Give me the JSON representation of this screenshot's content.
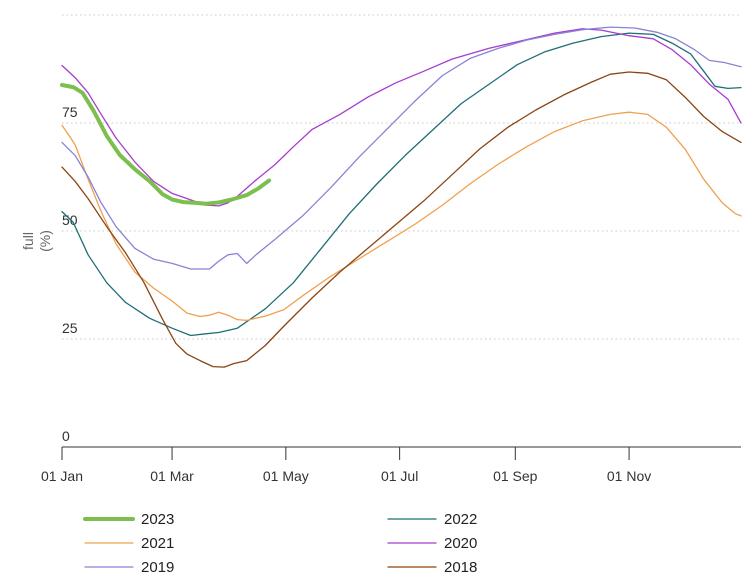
{
  "chart_data": {
    "type": "line",
    "title": "",
    "xlabel": "",
    "ylabel": [
      "full",
      "(%)"
    ],
    "ylim": [
      0,
      100
    ],
    "xlim_day_of_year": [
      1,
      365
    ],
    "yticks": [
      {
        "value": 0,
        "label": "0"
      },
      {
        "value": 25,
        "label": "25"
      },
      {
        "value": 50,
        "label": "50"
      },
      {
        "value": 75,
        "label": "75"
      },
      {
        "value": 100,
        "label": ""
      }
    ],
    "xticks": [
      {
        "day": 1,
        "label": "01 Jan"
      },
      {
        "day": 60,
        "label": "01 Mar"
      },
      {
        "day": 121,
        "label": "01 May"
      },
      {
        "day": 182,
        "label": "01 Jul"
      },
      {
        "day": 244,
        "label": "01 Sep"
      },
      {
        "day": 305,
        "label": "01 Nov"
      }
    ],
    "grid": "horizontal dotted",
    "legend": "bottom, two columns",
    "series": [
      {
        "name": "2023",
        "color": "#7cbf4e",
        "width": 4,
        "points": [
          [
            1,
            83.8
          ],
          [
            7,
            83.3
          ],
          [
            12,
            82
          ],
          [
            18,
            77.8
          ],
          [
            25,
            72
          ],
          [
            32,
            67.6
          ],
          [
            40,
            64.3
          ],
          [
            48,
            61.5
          ],
          [
            55,
            58.5
          ],
          [
            60,
            57.3
          ],
          [
            66,
            56.7
          ],
          [
            73,
            56.5
          ],
          [
            78,
            56.3
          ],
          [
            85,
            56.6
          ],
          [
            92,
            57.3
          ],
          [
            100,
            58.3
          ],
          [
            106,
            59.8
          ],
          [
            112,
            61.7
          ]
        ]
      },
      {
        "name": "2022",
        "color": "#1f6e78",
        "width": 1.3,
        "points": [
          [
            1,
            54.5
          ],
          [
            7,
            52
          ],
          [
            15,
            44.5
          ],
          [
            25,
            38
          ],
          [
            35,
            33.5
          ],
          [
            48,
            29.8
          ],
          [
            60,
            27.5
          ],
          [
            70,
            25.8
          ],
          [
            78,
            26.2
          ],
          [
            85,
            26.5
          ],
          [
            95,
            27.5
          ],
          [
            110,
            32
          ],
          [
            125,
            38
          ],
          [
            140,
            46
          ],
          [
            155,
            54
          ],
          [
            170,
            61
          ],
          [
            185,
            67.5
          ],
          [
            200,
            73.5
          ],
          [
            215,
            79.5
          ],
          [
            230,
            84
          ],
          [
            245,
            88.5
          ],
          [
            260,
            91.5
          ],
          [
            275,
            93.5
          ],
          [
            290,
            95
          ],
          [
            305,
            95.8
          ],
          [
            318,
            95.5
          ],
          [
            328,
            93.5
          ],
          [
            338,
            91
          ],
          [
            345,
            87
          ],
          [
            351,
            83.5
          ],
          [
            358,
            83
          ],
          [
            365,
            83.2
          ]
        ]
      },
      {
        "name": "2021",
        "color": "#f0a050",
        "width": 1.3,
        "points": [
          [
            1,
            74.5
          ],
          [
            8,
            70
          ],
          [
            15,
            62
          ],
          [
            22,
            54.5
          ],
          [
            30,
            47
          ],
          [
            40,
            40.5
          ],
          [
            50,
            36.8
          ],
          [
            60,
            33.8
          ],
          [
            68,
            31
          ],
          [
            75,
            30.2
          ],
          [
            80,
            30.5
          ],
          [
            85,
            31.2
          ],
          [
            90,
            30.5
          ],
          [
            95,
            29.5
          ],
          [
            100,
            29.3
          ],
          [
            110,
            30.3
          ],
          [
            120,
            31.8
          ],
          [
            130,
            35
          ],
          [
            145,
            39.5
          ],
          [
            160,
            43.5
          ],
          [
            175,
            47.5
          ],
          [
            190,
            51.5
          ],
          [
            205,
            56
          ],
          [
            220,
            61
          ],
          [
            235,
            65.5
          ],
          [
            250,
            69.5
          ],
          [
            265,
            73
          ],
          [
            280,
            75.5
          ],
          [
            295,
            77
          ],
          [
            305,
            77.5
          ],
          [
            315,
            77
          ],
          [
            325,
            74
          ],
          [
            335,
            69
          ],
          [
            345,
            62
          ],
          [
            355,
            56.5
          ],
          [
            362,
            54
          ],
          [
            365,
            53.5
          ]
        ]
      },
      {
        "name": "2020",
        "color": "#a63dcf",
        "width": 1.3,
        "points": [
          [
            1,
            88.3
          ],
          [
            8,
            85.5
          ],
          [
            15,
            82
          ],
          [
            22,
            77
          ],
          [
            30,
            71.5
          ],
          [
            40,
            66
          ],
          [
            50,
            61.5
          ],
          [
            60,
            58.7
          ],
          [
            70,
            57.2
          ],
          [
            78,
            56
          ],
          [
            85,
            55.8
          ],
          [
            90,
            56.5
          ],
          [
            95,
            58
          ],
          [
            105,
            61.8
          ],
          [
            115,
            65.3
          ],
          [
            125,
            69.5
          ],
          [
            135,
            73.5
          ],
          [
            150,
            77
          ],
          [
            165,
            81
          ],
          [
            180,
            84.3
          ],
          [
            195,
            87
          ],
          [
            210,
            89.8
          ],
          [
            230,
            92.3
          ],
          [
            250,
            94.3
          ],
          [
            265,
            95.8
          ],
          [
            280,
            96.8
          ],
          [
            290,
            96.5
          ],
          [
            305,
            95.2
          ],
          [
            318,
            94.5
          ],
          [
            328,
            92
          ],
          [
            338,
            88.5
          ],
          [
            348,
            84
          ],
          [
            358,
            80.5
          ],
          [
            365,
            75
          ]
        ]
      },
      {
        "name": "2019",
        "color": "#8884d4",
        "width": 1.3,
        "points": [
          [
            1,
            70.5
          ],
          [
            8,
            67.5
          ],
          [
            15,
            62.5
          ],
          [
            22,
            56.5
          ],
          [
            30,
            51
          ],
          [
            40,
            46
          ],
          [
            50,
            43.5
          ],
          [
            60,
            42.5
          ],
          [
            70,
            41.2
          ],
          [
            80,
            41.2
          ],
          [
            85,
            43
          ],
          [
            90,
            44.5
          ],
          [
            95,
            44.8
          ],
          [
            100,
            42.5
          ],
          [
            105,
            44.5
          ],
          [
            115,
            48
          ],
          [
            130,
            53.5
          ],
          [
            145,
            60
          ],
          [
            160,
            67
          ],
          [
            175,
            73.5
          ],
          [
            190,
            80
          ],
          [
            205,
            86
          ],
          [
            220,
            90
          ],
          [
            235,
            92.3
          ],
          [
            250,
            94.2
          ],
          [
            265,
            95.5
          ],
          [
            280,
            96.6
          ],
          [
            295,
            97.2
          ],
          [
            308,
            97
          ],
          [
            320,
            96
          ],
          [
            330,
            94.5
          ],
          [
            340,
            92
          ],
          [
            348,
            89.5
          ],
          [
            356,
            89
          ],
          [
            365,
            88
          ]
        ]
      },
      {
        "name": "2018",
        "color": "#8b4513",
        "width": 1.3,
        "points": [
          [
            1,
            64.8
          ],
          [
            8,
            61.5
          ],
          [
            15,
            57.5
          ],
          [
            25,
            51
          ],
          [
            35,
            45
          ],
          [
            45,
            38
          ],
          [
            55,
            29.5
          ],
          [
            62,
            24
          ],
          [
            68,
            21.5
          ],
          [
            75,
            20
          ],
          [
            82,
            18.6
          ],
          [
            88,
            18.5
          ],
          [
            93,
            19.3
          ],
          [
            100,
            20
          ],
          [
            110,
            23.5
          ],
          [
            120,
            28
          ],
          [
            135,
            34.5
          ],
          [
            150,
            40.5
          ],
          [
            165,
            46
          ],
          [
            180,
            51.5
          ],
          [
            195,
            57
          ],
          [
            210,
            63
          ],
          [
            225,
            69
          ],
          [
            240,
            74
          ],
          [
            255,
            78
          ],
          [
            270,
            81.5
          ],
          [
            285,
            84.5
          ],
          [
            295,
            86.3
          ],
          [
            305,
            86.8
          ],
          [
            315,
            86.5
          ],
          [
            325,
            85
          ],
          [
            335,
            81
          ],
          [
            345,
            76.5
          ],
          [
            355,
            73
          ],
          [
            365,
            70.5
          ]
        ]
      }
    ]
  },
  "legend": [
    {
      "label": "2023",
      "color": "#7cbf4e",
      "width": 4,
      "col": 0,
      "row": 0
    },
    {
      "label": "2022",
      "color": "#1f6e78",
      "width": 1.3,
      "col": 1,
      "row": 0
    },
    {
      "label": "2021",
      "color": "#f0a050",
      "width": 1.3,
      "col": 0,
      "row": 1
    },
    {
      "label": "2020",
      "color": "#a63dcf",
      "width": 1.3,
      "col": 1,
      "row": 1
    },
    {
      "label": "2019",
      "color": "#8884d4",
      "width": 1.3,
      "col": 0,
      "row": 2
    },
    {
      "label": "2018",
      "color": "#8b4513",
      "width": 1.3,
      "col": 1,
      "row": 2
    }
  ]
}
